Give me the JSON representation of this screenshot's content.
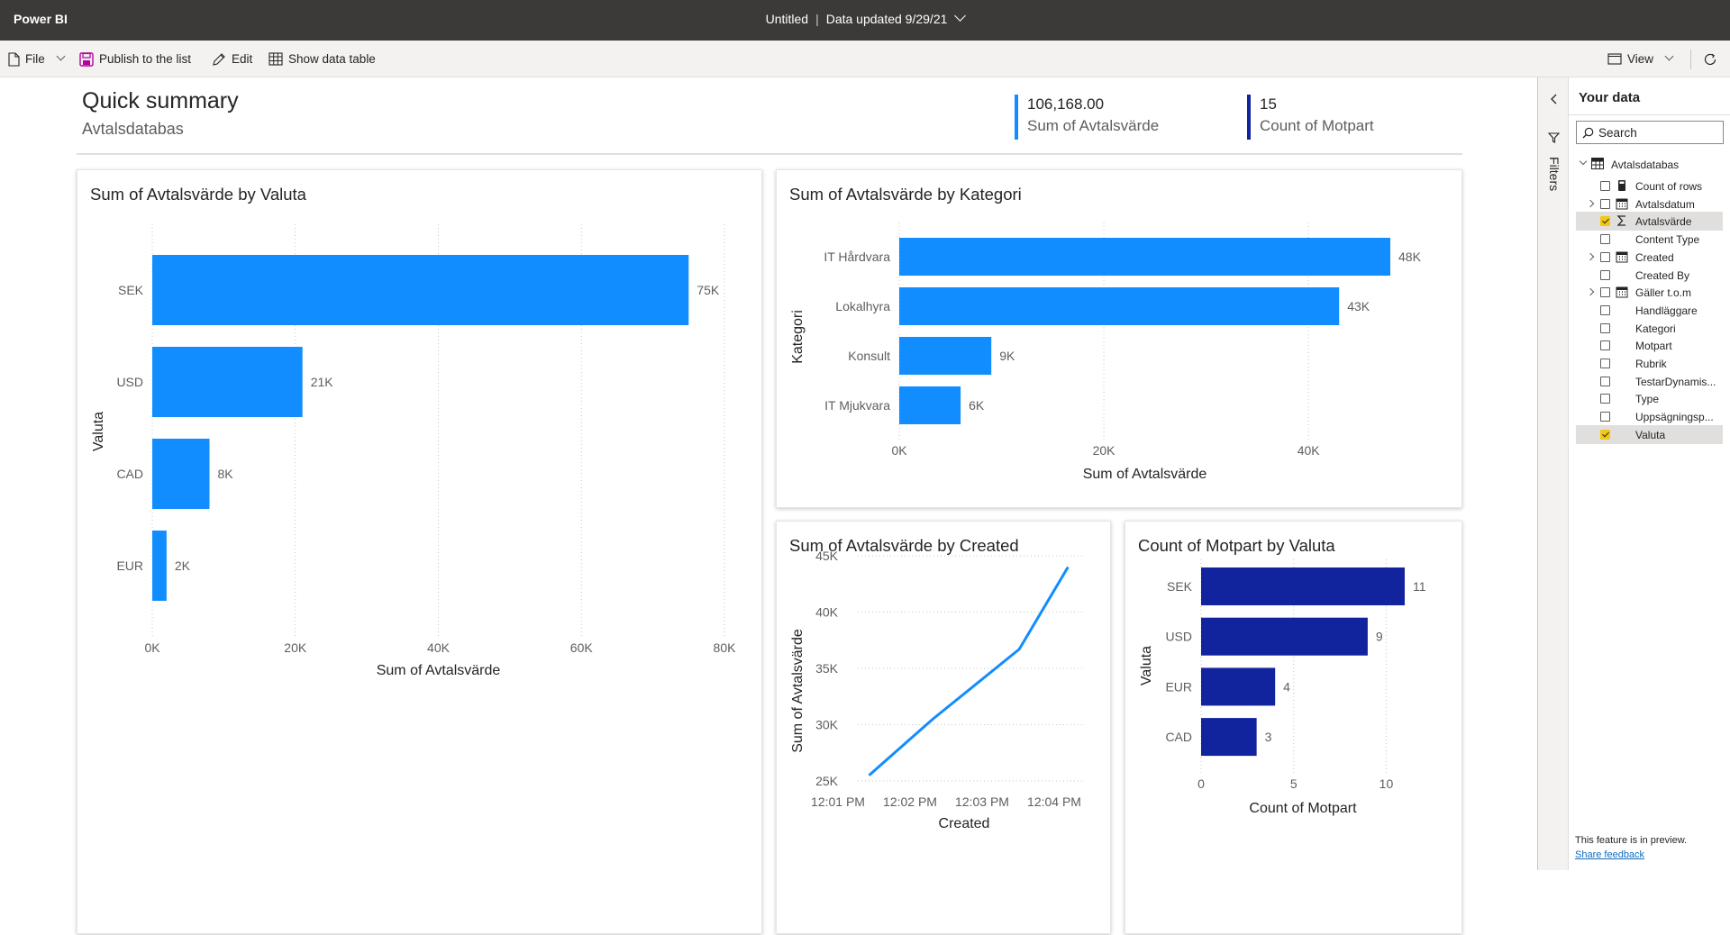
{
  "app": {
    "brand": "Power BI",
    "doc_title": "Untitled",
    "data_updated": "Data updated 9/29/21"
  },
  "toolbar": {
    "file": "File",
    "publish": "Publish to the list",
    "edit": "Edit",
    "show_table": "Show data table",
    "view": "View"
  },
  "summary": {
    "title": "Quick summary",
    "subtitle": "Avtalsdatabas",
    "kpis": [
      {
        "value": "106,168.00",
        "label": "Sum of Avtalsvärde",
        "color": "#118dff"
      },
      {
        "value": "15",
        "label": "Count of Motpart",
        "color": "#12239e"
      }
    ]
  },
  "chart_data": [
    {
      "id": "valuta",
      "type": "bar",
      "orientation": "horizontal",
      "title": "Sum of Avtalsvärde by Valuta",
      "xlabel": "Sum of Avtalsvärde",
      "ylabel": "Valuta",
      "categories": [
        "SEK",
        "USD",
        "CAD",
        "EUR"
      ],
      "values": [
        75000,
        21000,
        8000,
        2000
      ],
      "data_labels": [
        "75K",
        "21K",
        "8K",
        "2K"
      ],
      "xlim": [
        0,
        80000
      ],
      "ticks": [
        0,
        20000,
        40000,
        60000,
        80000
      ],
      "tick_labels": [
        "0K",
        "20K",
        "40K",
        "60K",
        "80K"
      ],
      "color": "#118dff",
      "grid": "vertical dotted"
    },
    {
      "id": "kategori",
      "type": "bar",
      "orientation": "horizontal",
      "title": "Sum of Avtalsvärde by Kategori",
      "xlabel": "Sum of Avtalsvärde",
      "ylabel": "Kategori",
      "categories": [
        "IT Hårdvara",
        "Lokalhyra",
        "Konsult",
        "IT Mjukvara"
      ],
      "values": [
        48000,
        43000,
        9000,
        6000
      ],
      "data_labels": [
        "48K",
        "43K",
        "9K",
        "6K"
      ],
      "xlim": [
        0,
        48000
      ],
      "ticks": [
        0,
        20000,
        40000
      ],
      "tick_labels": [
        "0K",
        "20K",
        "40K"
      ],
      "color": "#118dff",
      "grid": "vertical dotted"
    },
    {
      "id": "created",
      "type": "line",
      "title": "Sum of Avtalsvärde by Created",
      "xlabel": "Created",
      "ylabel": "Sum of Avtalsvärde",
      "x": [
        "12:01 PM",
        "12:02 PM",
        "12:03 PM",
        "12:04 PM"
      ],
      "x_values": [
        0.15,
        1.0,
        2.15,
        2.8
      ],
      "y_values": [
        25500,
        30500,
        36700,
        44000
      ],
      "xlim": [
        0,
        3
      ],
      "ylim": [
        25000,
        45000
      ],
      "yticks": [
        25000,
        30000,
        35000,
        40000,
        45000
      ],
      "ytick_labels": [
        "25K",
        "30K",
        "35K",
        "40K",
        "45K"
      ],
      "color": "#118dff",
      "grid": "horizontal dotted"
    },
    {
      "id": "motpart",
      "type": "bar",
      "orientation": "horizontal",
      "title": "Count of Motpart by Valuta",
      "xlabel": "Count of Motpart",
      "ylabel": "Valuta",
      "categories": [
        "SEK",
        "USD",
        "EUR",
        "CAD"
      ],
      "values": [
        11,
        9,
        4,
        3
      ],
      "data_labels": [
        "11",
        "9",
        "4",
        "3"
      ],
      "xlim": [
        0,
        11
      ],
      "ticks": [
        0,
        5,
        10
      ],
      "tick_labels": [
        "0",
        "5",
        "10"
      ],
      "color": "#12239e",
      "grid": "vertical dotted"
    }
  ],
  "filters_pane": {
    "label": "Filters"
  },
  "data_pane": {
    "title": "Your data",
    "search_placeholder": "Search",
    "table_name": "Avtalsdatabas",
    "fields": [
      {
        "name": "Count of rows",
        "icon": "calculator-icon",
        "expandable": false,
        "checked": false
      },
      {
        "name": "Avtalsdatum",
        "icon": "calendar-icon",
        "expandable": true,
        "checked": false
      },
      {
        "name": "Avtalsvärde",
        "icon": "sigma-icon",
        "expandable": false,
        "checked": true
      },
      {
        "name": "Content Type",
        "icon": "",
        "expandable": false,
        "checked": false
      },
      {
        "name": "Created",
        "icon": "calendar-icon",
        "expandable": true,
        "checked": false
      },
      {
        "name": "Created By",
        "icon": "",
        "expandable": false,
        "checked": false
      },
      {
        "name": "Gäller t.o.m",
        "icon": "calendar-icon",
        "expandable": true,
        "checked": false
      },
      {
        "name": "Handläggare",
        "icon": "",
        "expandable": false,
        "checked": false
      },
      {
        "name": "Kategori",
        "icon": "",
        "expandable": false,
        "checked": false
      },
      {
        "name": "Motpart",
        "icon": "",
        "expandable": false,
        "checked": false
      },
      {
        "name": "Rubrik",
        "icon": "",
        "expandable": false,
        "checked": false
      },
      {
        "name": "TestarDynamis...",
        "icon": "",
        "expandable": false,
        "checked": false
      },
      {
        "name": "Type",
        "icon": "",
        "expandable": false,
        "checked": false
      },
      {
        "name": "Uppsägningsp...",
        "icon": "",
        "expandable": false,
        "checked": false
      },
      {
        "name": "Valuta",
        "icon": "",
        "expandable": false,
        "checked": true
      }
    ],
    "preview_note": "This feature is in preview.",
    "feedback_link": "Share feedback"
  }
}
